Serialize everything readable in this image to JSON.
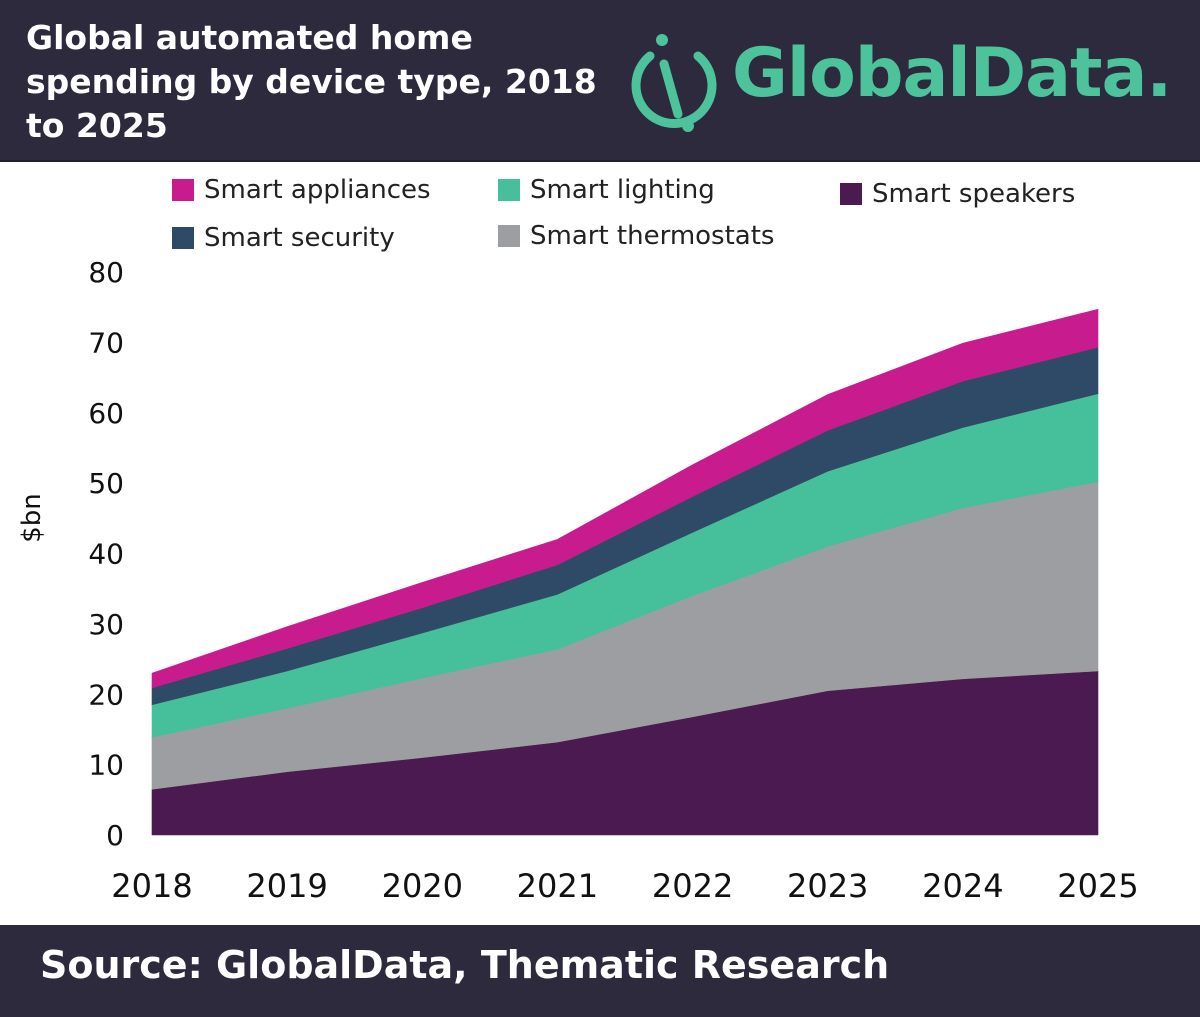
{
  "header": {
    "title_lines": [
      "Global automated home",
      "spending by device type, 2018",
      "to 2025"
    ],
    "logo_text": "GlobalData."
  },
  "footer": {
    "source": "Source:  GlobalData, Thematic Research"
  },
  "colors": {
    "header_bg": "#2d2a3e",
    "brand_green": "#4cc39a",
    "smart_speakers": "#4a1a50",
    "smart_thermostats": "#9d9ea1",
    "smart_lighting": "#46c09a",
    "smart_security": "#2f4a66",
    "smart_appliances": "#c81c8e"
  },
  "chart_data": {
    "type": "area",
    "stacked": true,
    "title": "Global automated home spending by device type, 2018 to 2025",
    "xlabel": "",
    "ylabel": "$bn",
    "categories": [
      "2018",
      "2019",
      "2020",
      "2021",
      "2022",
      "2023",
      "2024",
      "2025"
    ],
    "ylim": [
      0,
      80
    ],
    "yticks": [
      0,
      10,
      20,
      30,
      40,
      50,
      60,
      70,
      80
    ],
    "grid": false,
    "legend_position": "top",
    "series": [
      {
        "name": "Smart speakers",
        "color": "#4a1a50",
        "values": [
          6.5,
          9,
          11,
          13.2,
          16.8,
          20.5,
          22.2,
          23.3
        ]
      },
      {
        "name": "Smart thermostats",
        "color": "#9d9ea1",
        "values": [
          7.4,
          9,
          11.3,
          13.2,
          17.2,
          20.5,
          24.3,
          26.9
        ]
      },
      {
        "name": "Smart lighting",
        "color": "#46c09a",
        "values": [
          4.6,
          5.3,
          6.4,
          7.8,
          9,
          10.7,
          11.4,
          12.5
        ]
      },
      {
        "name": "Smart security",
        "color": "#2f4a66",
        "values": [
          2.4,
          3.2,
          3.6,
          4.2,
          5.1,
          5.8,
          6.6,
          6.6
        ]
      },
      {
        "name": "Smart appliances",
        "color": "#c81c8e",
        "values": [
          2.1,
          3.1,
          3.6,
          3.6,
          4.5,
          5.1,
          5.4,
          5.4
        ]
      }
    ],
    "legend_order": [
      "Smart appliances",
      "Smart lighting",
      "Smart speakers",
      "Smart security",
      "Smart thermostats"
    ]
  }
}
